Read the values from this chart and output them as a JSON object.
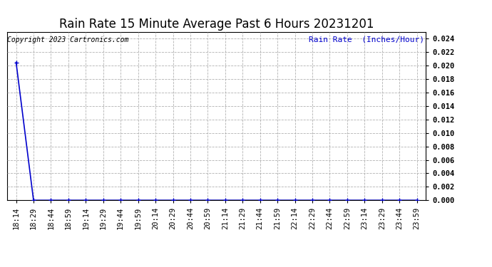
{
  "title": "Rain Rate 15 Minute Average Past 6 Hours 20231201",
  "ylabel": "Rain Rate  (Inches/Hour)",
  "copyright_text": "Copyright 2023 Cartronics.com",
  "line_color": "#0000cc",
  "background_color": "#ffffff",
  "grid_color": "#aaaaaa",
  "title_color": "#000000",
  "ylabel_color": "#0000cc",
  "copyright_color": "#000000",
  "ylim": [
    0.0,
    0.025
  ],
  "yticks": [
    0.0,
    0.002,
    0.004,
    0.006,
    0.008,
    0.01,
    0.012,
    0.014,
    0.016,
    0.018,
    0.02,
    0.022,
    0.024
  ],
  "x_labels": [
    "18:14",
    "18:29",
    "18:44",
    "18:59",
    "19:14",
    "19:29",
    "19:44",
    "19:59",
    "20:14",
    "20:29",
    "20:44",
    "20:59",
    "21:14",
    "21:29",
    "21:44",
    "21:59",
    "22:14",
    "22:29",
    "22:44",
    "22:59",
    "23:14",
    "23:29",
    "23:44",
    "23:59"
  ],
  "data_x": [
    0,
    1,
    2,
    3,
    4,
    5,
    6,
    7,
    8,
    9,
    10,
    11,
    12,
    13,
    14,
    15,
    16,
    17,
    18,
    19,
    20,
    21,
    22,
    23
  ],
  "data_y": [
    0.0205,
    0.0,
    0.0,
    0.0,
    0.0,
    0.0,
    0.0,
    0.0,
    0.0,
    0.0,
    0.0,
    0.0,
    0.0,
    0.0,
    0.0,
    0.0,
    0.0,
    0.0,
    0.0,
    0.0,
    0.0,
    0.0,
    0.0,
    0.0
  ],
  "marker": "+",
  "marker_color": "#0000cc",
  "marker_size": 4,
  "linewidth": 1.2,
  "title_fontsize": 12,
  "tick_fontsize": 7.5,
  "copyright_fontsize": 7,
  "ylabel_fontsize": 8
}
